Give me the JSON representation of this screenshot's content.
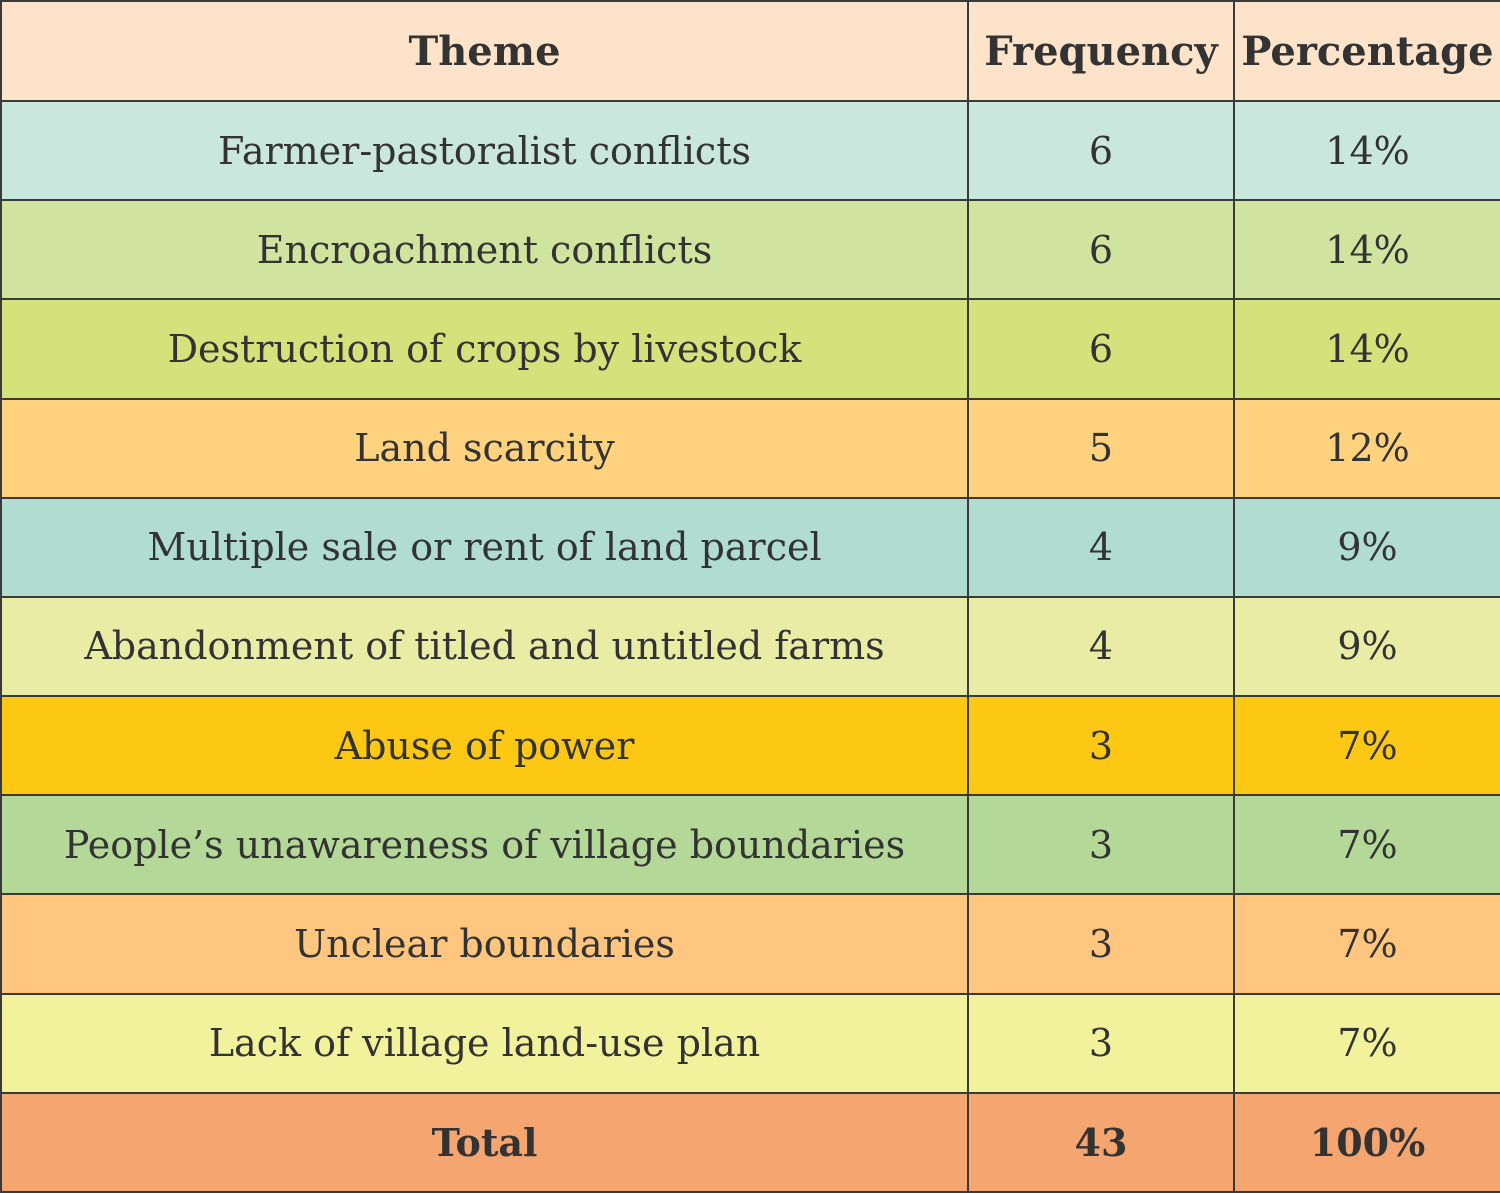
{
  "chart_data": {
    "type": "table",
    "columns": [
      "Theme",
      "Frequency",
      "Percentage"
    ],
    "header_color": "#fde3c9",
    "rows": [
      {
        "theme": "Farmer-pastoralist conflicts",
        "frequency": "6",
        "percentage": "14%",
        "color": "#c9e7dc"
      },
      {
        "theme": "Encroachment conflicts",
        "frequency": "6",
        "percentage": "14%",
        "color": "#d0e4a0"
      },
      {
        "theme": "Destruction of crops by livestock",
        "frequency": "6",
        "percentage": "14%",
        "color": "#d3e27a"
      },
      {
        "theme": "Land scarcity",
        "frequency": "5",
        "percentage": "12%",
        "color": "#fed27f"
      },
      {
        "theme": "Multiple sale or rent of land parcel",
        "frequency": "4",
        "percentage": "9%",
        "color": "#b0ddd0"
      },
      {
        "theme": "Abandonment of titled and untitled farms",
        "frequency": "4",
        "percentage": "9%",
        "color": "#e8eca5"
      },
      {
        "theme": "Abuse of power",
        "frequency": "3",
        "percentage": "7%",
        "color": "#fcc814"
      },
      {
        "theme": "People’s unawareness of village boundaries",
        "frequency": "3",
        "percentage": "7%",
        "color": "#b3d898"
      },
      {
        "theme": "Unclear boundaries",
        "frequency": "3",
        "percentage": "7%",
        "color": "#fec67e"
      },
      {
        "theme": "Lack of village land-use plan",
        "frequency": "3",
        "percentage": "7%",
        "color": "#f3f29c"
      }
    ],
    "total": {
      "theme": "Total",
      "frequency": "43",
      "percentage": "100%",
      "color": "#f5a570"
    }
  }
}
